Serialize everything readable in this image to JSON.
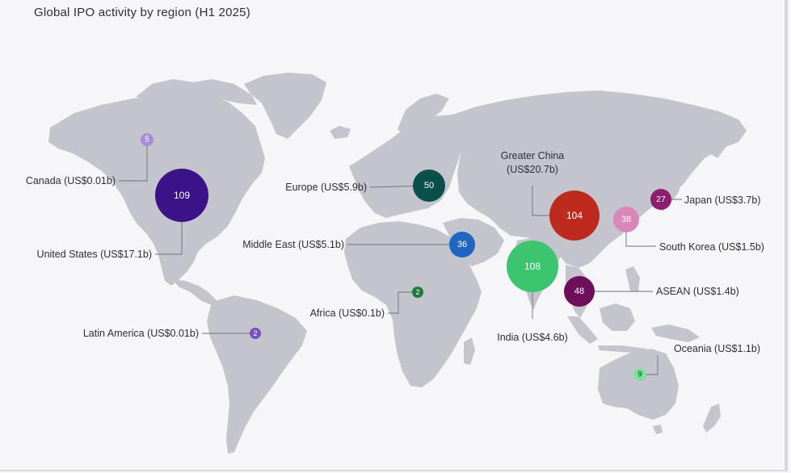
{
  "title": "Global IPO activity by region (H1 2025)",
  "regions": [
    {
      "name": "Canada",
      "label": "Canada (US$0.01b)",
      "count": "5",
      "color": "#a98bd6"
    },
    {
      "name": "United States",
      "label": "United States (US$17.1b)",
      "count": "109",
      "color": "#3c1288"
    },
    {
      "name": "Latin America",
      "label": "Latin America (US$0.01b)",
      "count": "2",
      "color": "#7a4fc4"
    },
    {
      "name": "Europe",
      "label": "Europe (US$5.9b)",
      "count": "50",
      "color": "#0b4f4c"
    },
    {
      "name": "Middle East",
      "label": "Middle East (US$5.1b)",
      "count": "36",
      "color": "#1e66c2"
    },
    {
      "name": "Africa",
      "label": "Africa (US$0.1b)",
      "count": "2",
      "color": "#1f7a3c"
    },
    {
      "name": "India",
      "label": "India (US$4.6b)",
      "count": "108",
      "color": "#3cc46e"
    },
    {
      "name": "Greater China",
      "label_line1": "Greater China",
      "label_line2": "(US$20.7b)",
      "count": "104",
      "color": "#bf2a1f"
    },
    {
      "name": "ASEAN",
      "label": "ASEAN (US$1.4b)",
      "count": "48",
      "color": "#6e0f5c"
    },
    {
      "name": "South Korea",
      "label": "South Korea (US$1.5b)",
      "count": "38",
      "color": "#d987b8"
    },
    {
      "name": "Japan",
      "label": "Japan (US$3.7b)",
      "count": "27",
      "color": "#8e1f6e"
    },
    {
      "name": "Oceania",
      "label": "Oceania (US$1.1b)",
      "count": "9",
      "color": "#7fe0a0"
    }
  ]
}
